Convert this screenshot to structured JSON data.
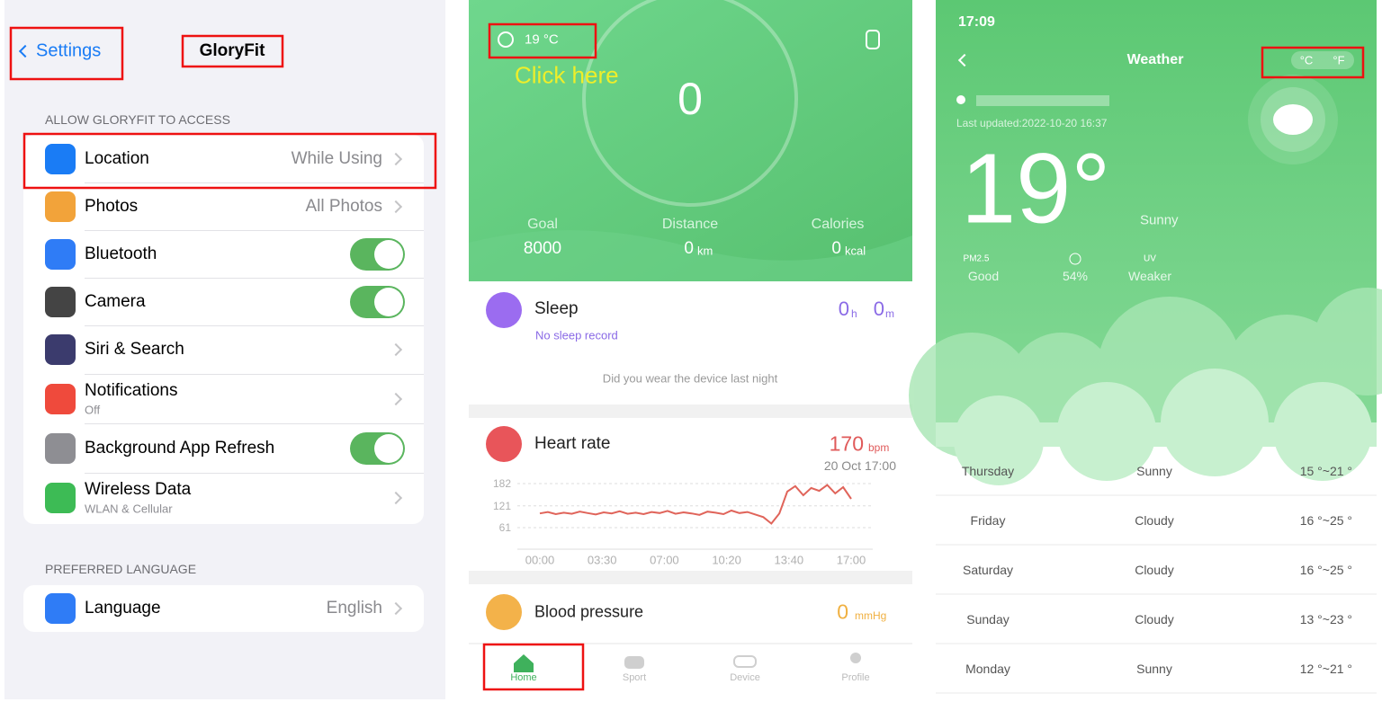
{
  "settings_screen": {
    "back": "Settings",
    "title": "GloryFit",
    "section1": "ALLOW GLORYFIT TO ACCESS",
    "items": [
      {
        "label": "Location",
        "value": "While Using"
      },
      {
        "label": "Photos",
        "value": "All Photos"
      },
      {
        "label": "Bluetooth",
        "toggle": true
      },
      {
        "label": "Camera",
        "toggle": true
      },
      {
        "label": "Siri & Search"
      },
      {
        "label": "Notifications",
        "sub": "Off"
      },
      {
        "label": "Background App Refresh",
        "toggle": true
      },
      {
        "label": "Wireless Data",
        "sub": "WLAN & Cellular"
      }
    ],
    "section2": "PREFERRED LANGUAGE",
    "language": {
      "label": "Language",
      "value": "English"
    }
  },
  "home_screen": {
    "weather": "19 °C",
    "annotation": "Click here",
    "steps": 0,
    "stats": [
      {
        "label": "Goal",
        "value": 8000
      },
      {
        "label": "Distance",
        "value": 0,
        "unit": "km"
      },
      {
        "label": "Calories",
        "value": 0,
        "unit": "kcal"
      }
    ],
    "sleep": {
      "title": "Sleep",
      "hours": 0,
      "h_unit": "h",
      "minutes": 0,
      "m_unit": "m",
      "status": "No sleep record",
      "hint": "Did you wear the device last night"
    },
    "heart_rate": {
      "title": "Heart rate",
      "value": 170,
      "unit": "bpm",
      "time": "20 Oct 17:00",
      "chart": {
        "ylim": [
          61,
          182
        ],
        "yticks": [
          182,
          121,
          61
        ],
        "xticks": [
          "00:00",
          "03:30",
          "07:00",
          "10:20",
          "13:40",
          "17:00"
        ],
        "values": [
          100,
          104,
          98,
          102,
          99,
          105,
          101,
          97,
          103,
          100,
          106,
          99,
          102,
          98,
          104,
          101,
          107,
          99,
          103,
          100,
          96,
          105,
          102,
          98,
          108,
          101,
          104,
          97,
          90,
          72,
          100,
          160,
          175,
          150,
          170,
          162,
          178,
          155,
          172,
          140
        ]
      }
    },
    "blood_pressure": {
      "title": "Blood pressure",
      "value": 0,
      "unit": "mmHg"
    },
    "tabs": [
      "Home",
      "Sport",
      "Device",
      "Profile"
    ]
  },
  "weather_screen": {
    "time": "17:09",
    "title": "Weather",
    "unit_c": "°C",
    "unit_f": "°F",
    "updated": "Last updated:2022-10-20 16:37",
    "temperature": "19°",
    "condition": "Sunny",
    "stats": [
      {
        "label": "PM2.5",
        "value": "Good"
      },
      {
        "value": "54%"
      },
      {
        "label": "UV",
        "value": "Weaker"
      }
    ],
    "forecast": [
      {
        "day": "Thursday",
        "condition": "Sunny",
        "range": "15 °~21 °"
      },
      {
        "day": "Friday",
        "condition": "Cloudy",
        "range": "16 °~25 °"
      },
      {
        "day": "Saturday",
        "condition": "Cloudy",
        "range": "16 °~25 °"
      },
      {
        "day": "Sunday",
        "condition": "Cloudy",
        "range": "13 °~23 °"
      },
      {
        "day": "Monday",
        "condition": "Sunny",
        "range": "12 °~21 °"
      }
    ]
  }
}
